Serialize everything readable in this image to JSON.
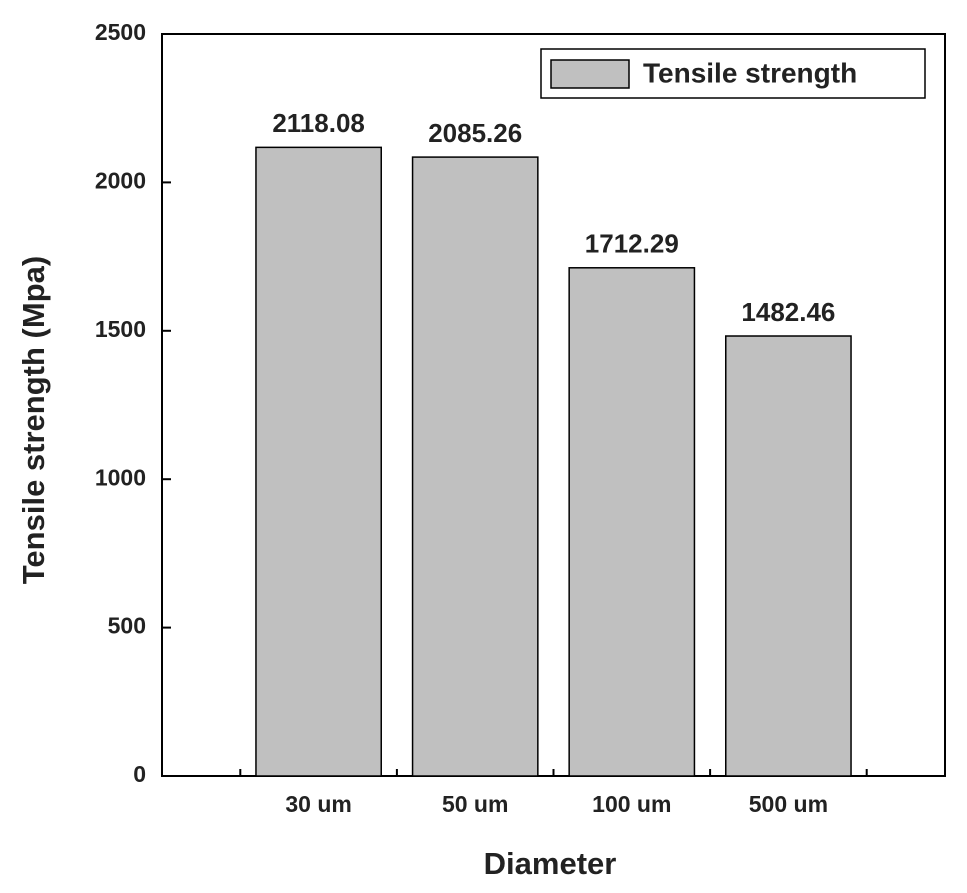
{
  "chart_data": {
    "type": "bar",
    "x_label": "Diameter",
    "y_label": "Tensile strength (Mpa)",
    "categories": [
      "30 um",
      "50 um",
      "100 um",
      "500 um"
    ],
    "series": [
      {
        "name": "Tensile strength",
        "color": "#c0c0c0",
        "values": [
          2118.08,
          2085.26,
          1712.29,
          1482.46
        ]
      }
    ],
    "ylim": [
      0,
      2500
    ],
    "yticks": [
      0,
      500,
      1000,
      1500,
      2000,
      2500
    ],
    "grid": false,
    "legend": "top-right"
  }
}
